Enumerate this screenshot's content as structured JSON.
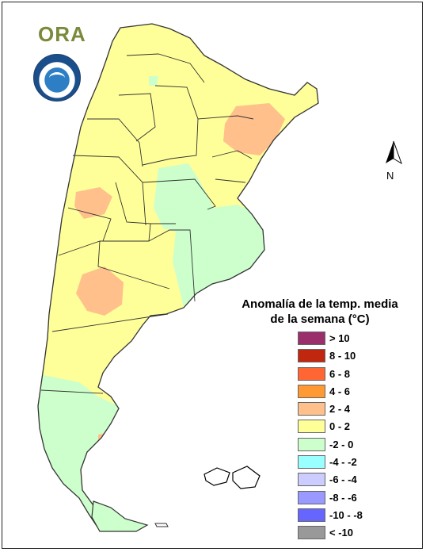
{
  "header": {
    "logo_text": "ORA"
  },
  "north_arrow": {
    "label": "N",
    "icon": "north-arrow-icon"
  },
  "legend": {
    "title_line1": "Anomalía de la temp. media",
    "title_line2": "de la semana (°C)",
    "entries": [
      {
        "label": "> 10",
        "color": "#9b2f6b"
      },
      {
        "label": "8 - 10",
        "color": "#c0270e"
      },
      {
        "label": "6 - 8",
        "color": "#ff6633"
      },
      {
        "label": "4 - 6",
        "color": "#ff9933"
      },
      {
        "label": "2 - 4",
        "color": "#ffc08c"
      },
      {
        "label": "0 - 2",
        "color": "#ffff99"
      },
      {
        "label": "-2 - 0",
        "color": "#ccffcc"
      },
      {
        "label": "-4 - -2",
        "color": "#99ffff"
      },
      {
        "label": "-6 - -4",
        "color": "#ccccff"
      },
      {
        "label": "-8 - -6",
        "color": "#9999ff"
      },
      {
        "label": "-10 - -8",
        "color": "#6666ff"
      },
      {
        "label": "< -10",
        "color": "#999999"
      }
    ]
  },
  "map": {
    "subject": "Argentina",
    "colors": {
      "warm_light": "#ffff99",
      "warm_medium": "#ffc08c",
      "cool_light": "#ccffcc",
      "outline": "#333333"
    }
  }
}
